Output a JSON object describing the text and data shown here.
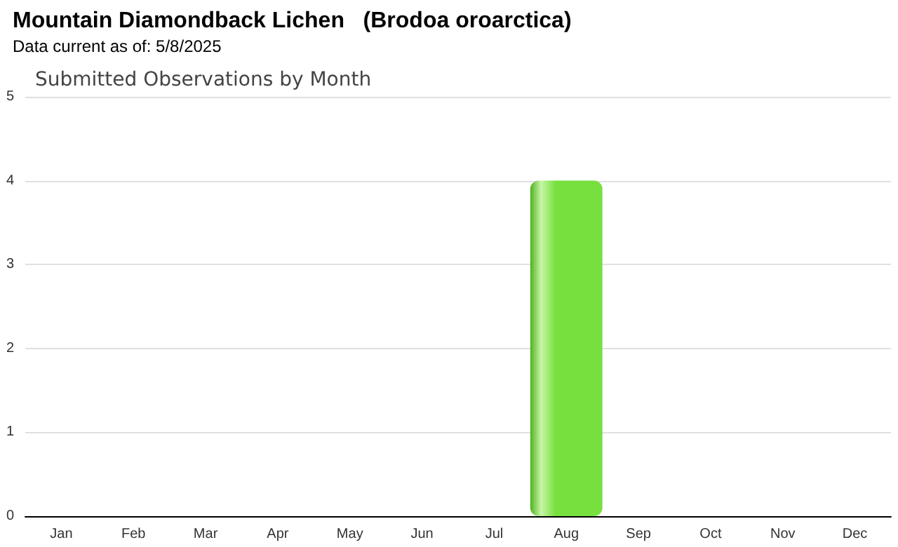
{
  "chart_data": {
    "type": "bar",
    "title": "Mountain Diamondback Lichen   (Brodoa oroarctica)",
    "subtitle": "Data current as of: 5/8/2025",
    "annotations": [
      "Submitted Observations by Month"
    ],
    "categories": [
      "Jan",
      "Feb",
      "Mar",
      "Apr",
      "May",
      "Jun",
      "Jul",
      "Aug",
      "Sep",
      "Oct",
      "Nov",
      "Dec"
    ],
    "values": [
      0,
      0,
      0,
      0,
      0,
      0,
      0,
      4,
      0,
      0,
      0,
      0
    ],
    "color": "#77e03f",
    "ylim": [
      0,
      5
    ],
    "yticks": [
      0,
      1,
      2,
      3,
      4,
      5
    ],
    "grid": "y"
  }
}
